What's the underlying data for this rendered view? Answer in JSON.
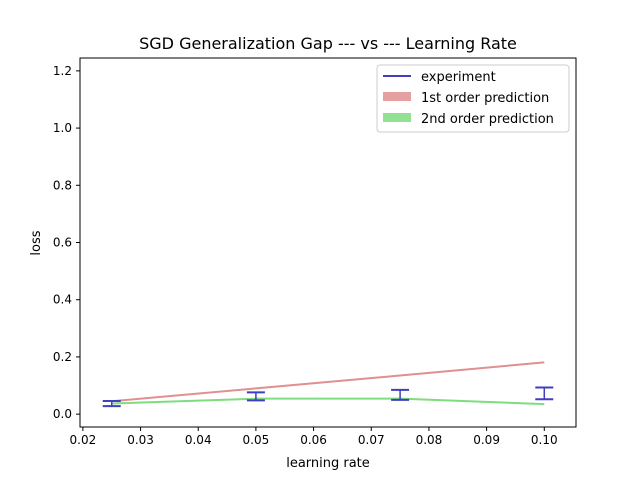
{
  "chart_data": {
    "type": "line",
    "title": "SGD Generalization Gap --- vs --- Learning Rate",
    "xlabel": "learning rate",
    "ylabel": "loss",
    "xlim": [
      0.0195,
      0.1055
    ],
    "ylim": [
      -0.045,
      1.245
    ],
    "xticks": [
      "0.02",
      "0.03",
      "0.04",
      "0.05",
      "0.06",
      "0.07",
      "0.08",
      "0.09",
      "0.10"
    ],
    "yticks": [
      "0.0",
      "0.2",
      "0.4",
      "0.6",
      "0.8",
      "1.0",
      "1.2"
    ],
    "grid": false,
    "legend_position": "top-right",
    "series": [
      {
        "name": "experiment",
        "kind": "errorbar",
        "color": "#3f3fbf",
        "x": [
          0.025,
          0.05,
          0.075,
          0.1
        ],
        "low": [
          0.028,
          0.048,
          0.05,
          0.052
        ],
        "high": [
          0.046,
          0.076,
          0.085,
          0.093
        ]
      },
      {
        "name": "1st order prediction",
        "kind": "line",
        "color": "#e09090",
        "x": [
          0.025,
          0.05,
          0.075,
          0.1
        ],
        "y": [
          0.045,
          0.09,
          0.135,
          0.181
        ]
      },
      {
        "name": "2nd order prediction",
        "kind": "line",
        "color": "#7fdc7f",
        "x": [
          0.025,
          0.05,
          0.075,
          0.1
        ],
        "y": [
          0.037,
          0.054,
          0.054,
          0.035
        ]
      }
    ]
  }
}
